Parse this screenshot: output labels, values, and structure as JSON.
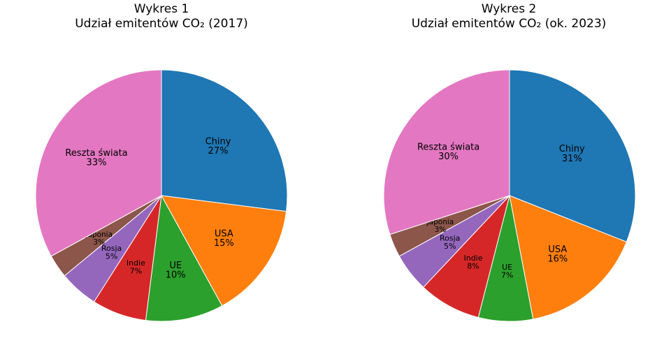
{
  "chart_data": [
    {
      "type": "pie",
      "title": "Wykres 1",
      "subtitle": "Udział emitentów CO₂ (2017)",
      "start_angle_deg": 90,
      "direction": "clockwise",
      "slices": [
        {
          "label": "Chiny",
          "value": 27,
          "pct_label": "27%",
          "color": "#1f77b4"
        },
        {
          "label": "USA",
          "value": 15,
          "pct_label": "15%",
          "color": "#ff7f0e"
        },
        {
          "label": "UE",
          "value": 10,
          "pct_label": "10%",
          "color": "#2ca02c"
        },
        {
          "label": "Indie",
          "value": 7,
          "pct_label": "7%",
          "color": "#d62728"
        },
        {
          "label": "Rosja",
          "value": 5,
          "pct_label": "5%",
          "color": "#9467bd"
        },
        {
          "label": "Japonia",
          "value": 3,
          "pct_label": "3%",
          "color": "#8c564b"
        },
        {
          "label": "Reszta świata",
          "value": 33,
          "pct_label": "33%",
          "color": "#e377c2"
        }
      ]
    },
    {
      "type": "pie",
      "title": "Wykres 2",
      "subtitle": "Udział emitentów CO₂ (ok. 2023)",
      "start_angle_deg": 90,
      "direction": "clockwise",
      "slices": [
        {
          "label": "Chiny",
          "value": 31,
          "pct_label": "31%",
          "color": "#1f77b4"
        },
        {
          "label": "USA",
          "value": 16,
          "pct_label": "16%",
          "color": "#ff7f0e"
        },
        {
          "label": "UE",
          "value": 7,
          "pct_label": "7%",
          "color": "#2ca02c"
        },
        {
          "label": "Indie",
          "value": 8,
          "pct_label": "8%",
          "color": "#d62728"
        },
        {
          "label": "Rosja",
          "value": 5,
          "pct_label": "5%",
          "color": "#9467bd"
        },
        {
          "label": "Japonia",
          "value": 3,
          "pct_label": "3%",
          "color": "#8c564b"
        },
        {
          "label": "Reszta świata",
          "value": 30,
          "pct_label": "30%",
          "color": "#e377c2"
        }
      ]
    }
  ]
}
